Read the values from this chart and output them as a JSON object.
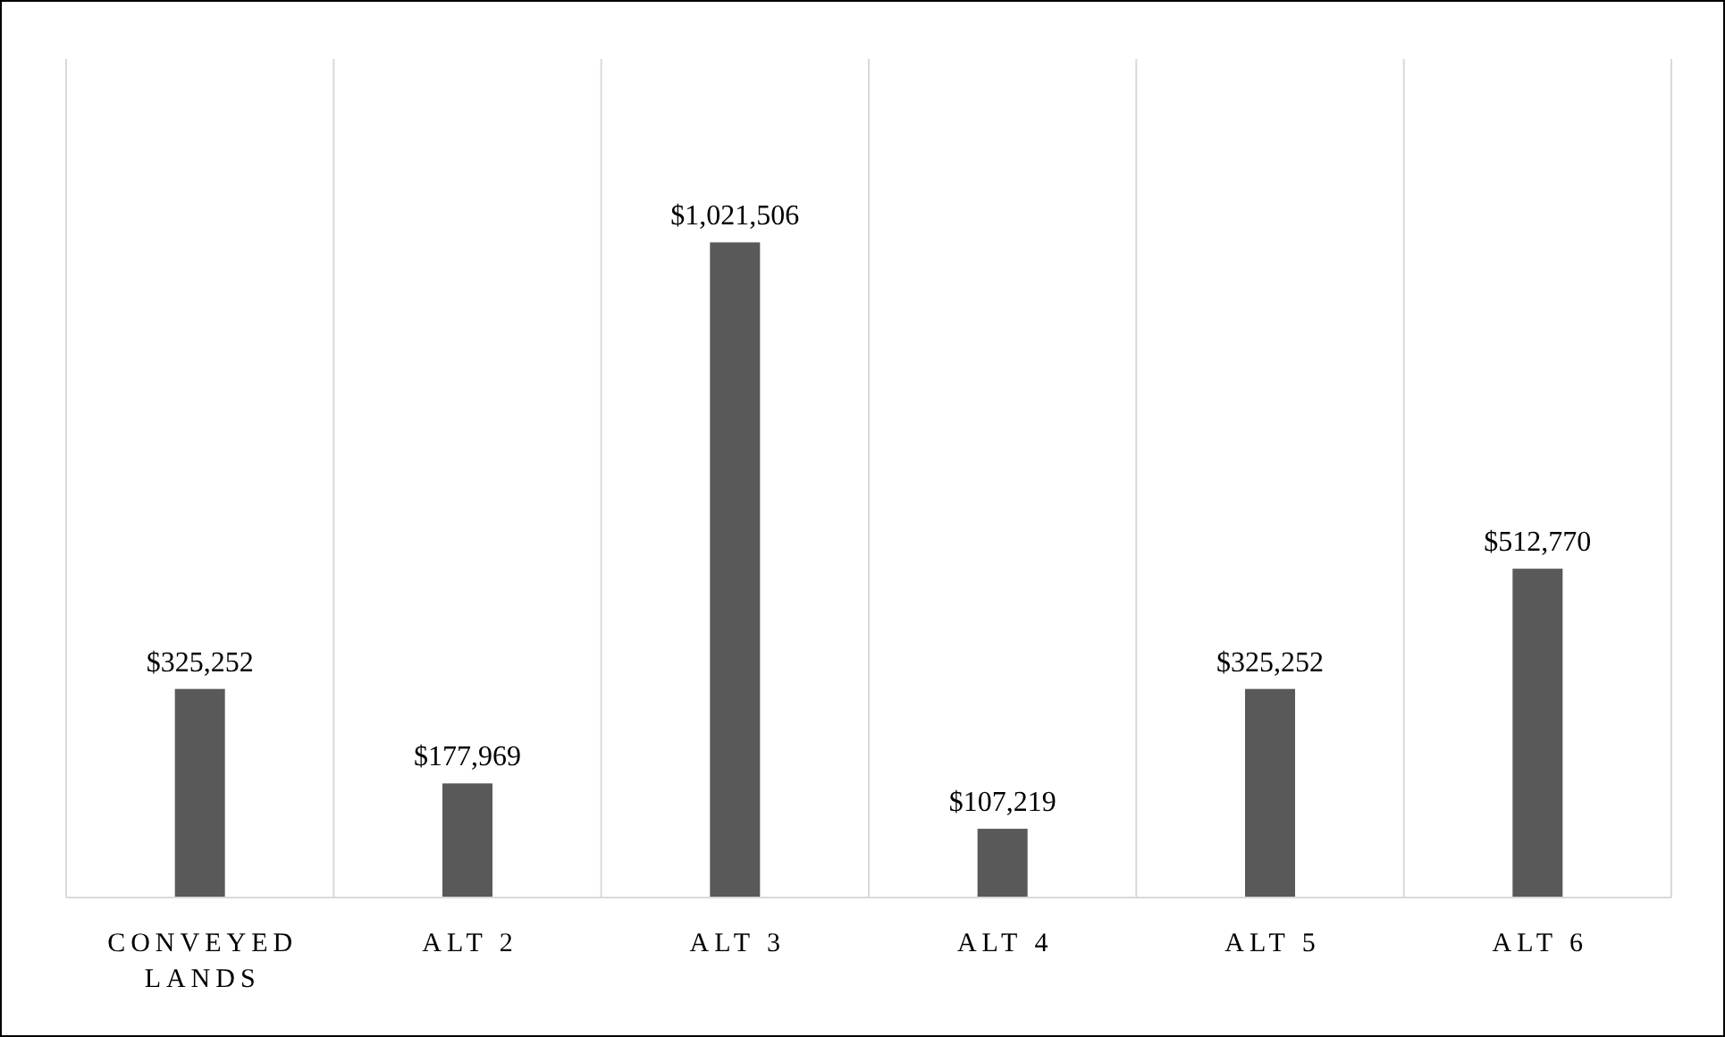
{
  "chart_data": {
    "type": "bar",
    "categories": [
      "CONVEYED LANDS",
      "ALT 2",
      "ALT 3",
      "ALT 4",
      "ALT 5",
      "ALT 6"
    ],
    "values": [
      325252,
      177969,
      1021506,
      107219,
      325252,
      512770
    ],
    "value_labels": [
      "$325,252",
      "$177,969",
      "$1,021,506",
      "$107,219",
      "$325,252",
      "$512,770"
    ],
    "color": "#595959",
    "grid": "x"
  }
}
